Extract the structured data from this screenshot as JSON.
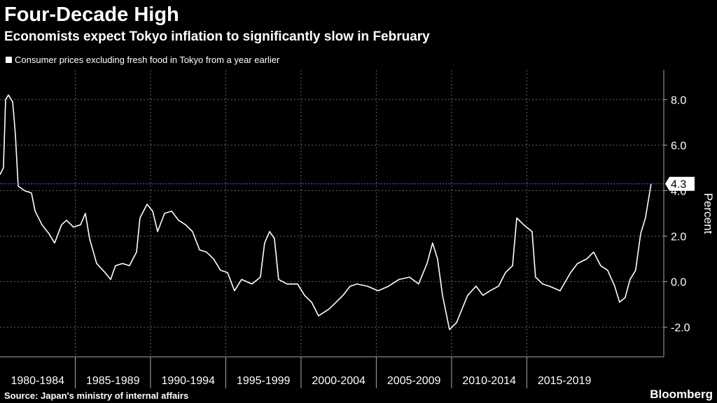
{
  "chart_data": {
    "type": "line",
    "title": "Four-Decade High",
    "subtitle": "Economists expect Tokyo inflation to significantly slow in February",
    "y_label": "Percent",
    "source": "Source: Japan's ministry of internal affairs",
    "brand": "Bloomberg",
    "grid": true,
    "xlim": [
      1980,
      2024.1
    ],
    "ylim": [
      -3.3,
      9.3
    ],
    "xticks": [
      {
        "value": 1980,
        "label": "1980-1984"
      },
      {
        "value": 1985,
        "label": "1985-1989"
      },
      {
        "value": 1990,
        "label": "1990-1994"
      },
      {
        "value": 1995,
        "label": "1995-1999"
      },
      {
        "value": 2000,
        "label": "2000-2004"
      },
      {
        "value": 2005,
        "label": "2005-2009"
      },
      {
        "value": 2010,
        "label": "2010-2014"
      },
      {
        "value": 2015,
        "label": "2015-2019"
      }
    ],
    "yticks": [
      {
        "value": -2,
        "label": "-2.0"
      },
      {
        "value": 0,
        "label": "0.0"
      },
      {
        "value": 2,
        "label": "2.0"
      },
      {
        "value": 4,
        "label": "4.0"
      },
      {
        "value": 6,
        "label": "6.0"
      },
      {
        "value": 8,
        "label": "8.0"
      }
    ],
    "x": [
      1980.0,
      1980.23,
      1980.37,
      1980.56,
      1980.84,
      1981.02,
      1981.21,
      1981.63,
      1982.09,
      1982.33,
      1982.79,
      1983.26,
      1983.63,
      1984.09,
      1984.42,
      1984.88,
      1985.35,
      1985.67,
      1985.95,
      1986.42,
      1986.98,
      1987.35,
      1987.67,
      1988.14,
      1988.6,
      1989.07,
      1989.3,
      1989.77,
      1990.14,
      1990.47,
      1990.93,
      1991.4,
      1991.86,
      1992.33,
      1992.79,
      1993.26,
      1993.72,
      1994.19,
      1994.65,
      1995.12,
      1995.58,
      1996.05,
      1996.74,
      1997.3,
      1997.58,
      1997.91,
      1998.23,
      1998.51,
      1999.07,
      1999.77,
      2000.23,
      2000.7,
      2001.16,
      2001.86,
      2002.33,
      2002.79,
      2003.26,
      2003.72,
      2004.42,
      2005.12,
      2005.81,
      2006.51,
      2007.21,
      2007.81,
      2008.37,
      2008.74,
      2009.07,
      2009.4,
      2009.86,
      2010.33,
      2010.7,
      2011.07,
      2011.63,
      2012.09,
      2012.56,
      2013.12,
      2013.58,
      2014.05,
      2014.33,
      2014.79,
      2015.35,
      2015.58,
      2016.05,
      2016.51,
      2017.21,
      2017.91,
      2018.37,
      2018.98,
      2019.44,
      2019.91,
      2020.37,
      2020.84,
      2021.16,
      2021.53,
      2021.86,
      2022.23,
      2022.56,
      2022.88,
      2023.26
    ],
    "series": [
      {
        "name": "Consumer prices excluding fresh food in Tokyo from a year earlier",
        "color": "#ffffff",
        "values": [
          4.7,
          5.0,
          8.0,
          8.2,
          7.9,
          6.5,
          4.2,
          4.0,
          3.9,
          3.1,
          2.5,
          2.1,
          1.7,
          2.5,
          2.7,
          2.4,
          2.5,
          3.0,
          1.9,
          0.8,
          0.4,
          0.1,
          0.7,
          0.8,
          0.7,
          1.3,
          2.8,
          3.4,
          3.1,
          2.2,
          3.0,
          3.1,
          2.7,
          2.5,
          2.2,
          1.4,
          1.3,
          1.0,
          0.5,
          0.4,
          -0.4,
          0.1,
          -0.1,
          0.2,
          1.7,
          2.2,
          1.9,
          0.1,
          -0.1,
          -0.1,
          -0.6,
          -0.9,
          -1.5,
          -1.2,
          -0.9,
          -0.6,
          -0.2,
          -0.1,
          -0.2,
          -0.4,
          -0.2,
          0.1,
          0.2,
          -0.1,
          0.8,
          1.7,
          1.0,
          -0.6,
          -2.1,
          -1.8,
          -1.2,
          -0.6,
          -0.2,
          -0.6,
          -0.4,
          -0.2,
          0.4,
          0.7,
          2.8,
          2.5,
          2.2,
          0.2,
          -0.1,
          -0.2,
          -0.4,
          0.4,
          0.8,
          1.0,
          1.3,
          0.7,
          0.5,
          -0.2,
          -0.9,
          -0.7,
          0.1,
          0.5,
          2.1,
          2.8,
          4.3
        ]
      }
    ]
  }
}
